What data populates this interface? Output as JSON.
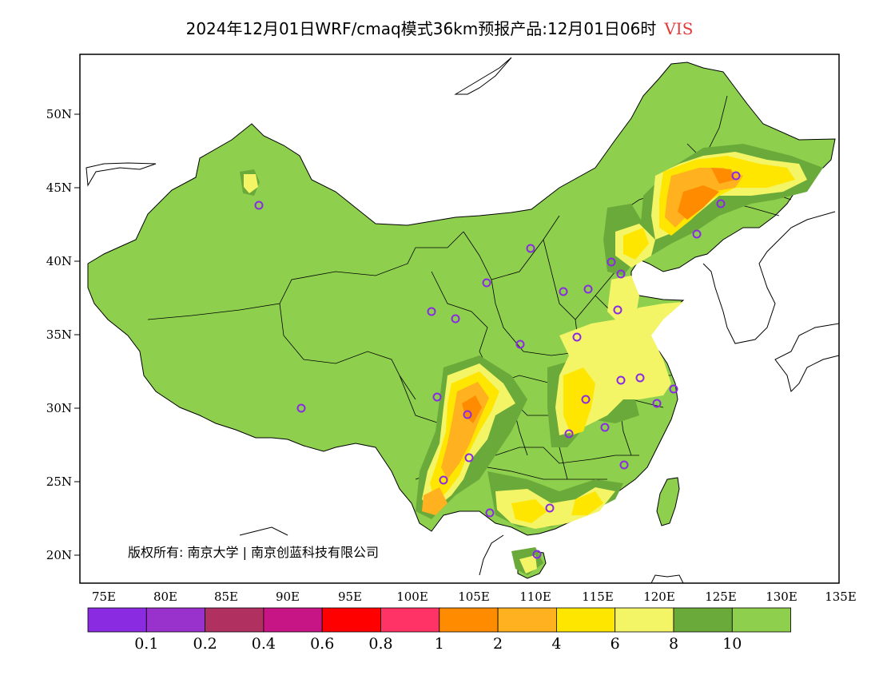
{
  "title": {
    "main": "2024年12月01日WRF/cmaq模式36km预报产品:12月01日06时",
    "variable": "VIS"
  },
  "map": {
    "lat_labels": [
      "50N",
      "45N",
      "40N",
      "35N",
      "30N",
      "25N",
      "20N"
    ],
    "lon_labels": [
      "75E",
      "80E",
      "85E",
      "90E",
      "95E",
      "100E",
      "105E",
      "110E",
      "115E",
      "120E",
      "125E",
      "130E",
      "135E"
    ],
    "copyright": "版权所有: 南京大学 | 南京创蓝科技有限公司",
    "colors": {
      "land_background": "#8ed04e",
      "dark_green": "#6aaa3a",
      "light_yellow": "#f3f566",
      "yellow": "#ffe600",
      "light_orange": "#ffb11f",
      "orange": "#ff8c00",
      "station_marker": "#8a2be2"
    }
  },
  "legend": {
    "colors": [
      "#8a2be2",
      "#9932cc",
      "#b03060",
      "#c71585",
      "#ff0000",
      "#ff3366",
      "#ff8c00",
      "#ffb11f",
      "#ffe600",
      "#f3f566",
      "#6aaa3a",
      "#8ed04e"
    ],
    "labels": [
      "0.1",
      "0.2",
      "0.4",
      "0.6",
      "0.8",
      "1",
      "2",
      "4",
      "6",
      "8",
      "10"
    ]
  }
}
